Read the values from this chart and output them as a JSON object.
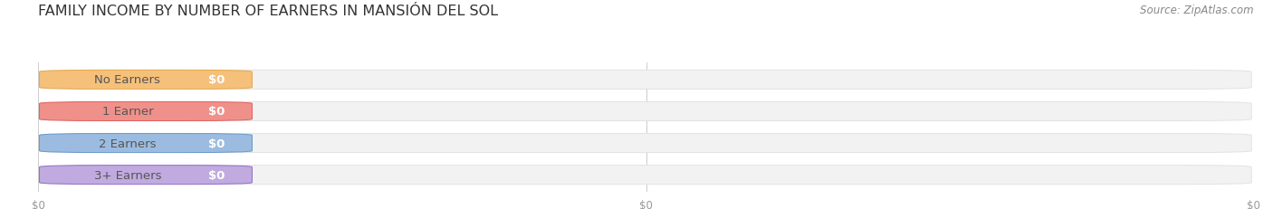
{
  "title": "FAMILY INCOME BY NUMBER OF EARNERS IN MANSIÓN DEL SOL",
  "source": "Source: ZipAtlas.com",
  "categories": [
    "No Earners",
    "1 Earner",
    "2 Earners",
    "3+ Earners"
  ],
  "values": [
    0,
    0,
    0,
    0
  ],
  "bar_colors": [
    "#f5c07a",
    "#f0908a",
    "#9bbce0",
    "#c0aae0"
  ],
  "bar_border_colors": [
    "#e8a848",
    "#e06060",
    "#6898cc",
    "#9070c8"
  ],
  "bar_bg_color": "#f2f2f2",
  "bar_bg_border": "#e2e2e2",
  "background_color": "#ffffff",
  "value_labels": [
    "$0",
    "$0",
    "$0",
    "$0"
  ],
  "tick_labels": [
    "$0",
    "$0",
    "$0"
  ],
  "xlim": [
    0,
    1
  ],
  "title_fontsize": 11.5,
  "source_fontsize": 8.5,
  "cat_fontsize": 9.5,
  "value_fontsize": 9.5
}
